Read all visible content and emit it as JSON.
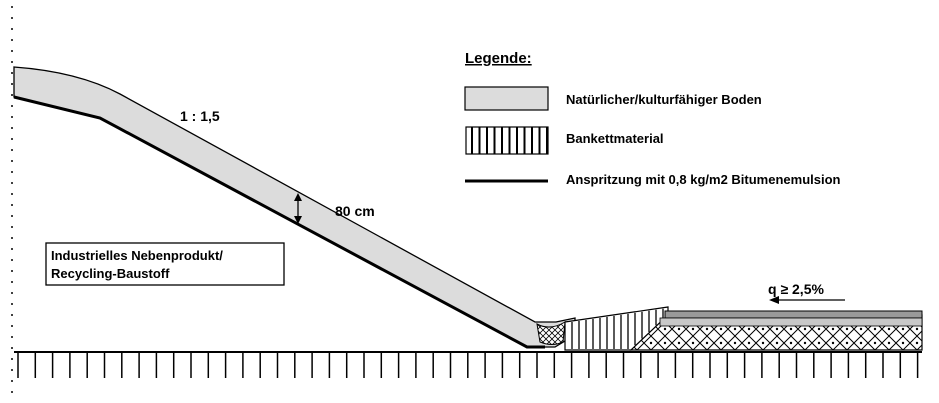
{
  "legend": {
    "title": "Legende:",
    "items": [
      {
        "label": "Natürlicher/kulturfähiger Boden",
        "type": "fill"
      },
      {
        "label": "Bankettmaterial",
        "type": "hatch"
      },
      {
        "label": "Anspritzung mit 0,8 kg/m2 Bitumenemulsion",
        "type": "line"
      }
    ]
  },
  "labels": {
    "slope_ratio": "1 : 1,5",
    "thickness": "80 cm",
    "fill_material_line1": "Industrielles Nebenprodukt/",
    "fill_material_line2": "Recycling-Baustoff",
    "cross_fall": "q ≥ 2,5%"
  },
  "colors": {
    "soil_fill": "#dcdcdc",
    "road_layer": "#9a9a9a",
    "line": "#000000",
    "background": "#ffffff"
  }
}
